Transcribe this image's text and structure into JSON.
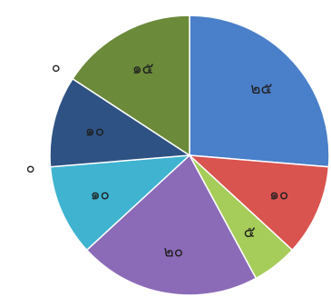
{
  "chart_data": {
    "type": "pie",
    "title": "",
    "slices": [
      {
        "label": "๒๕",
        "value": 25,
        "color": "#4a7fc9"
      },
      {
        "label": "๑๐",
        "value": 10,
        "color": "#d9534f"
      },
      {
        "label": "๕",
        "value": 5,
        "color": "#a6cc5a"
      },
      {
        "label": "๒๐",
        "value": 20,
        "color": "#8b6bb8"
      },
      {
        "label": "๑๐",
        "value": 10,
        "color": "#3fb3d0"
      },
      {
        "label": "๐",
        "value": 0,
        "color": "#3fb3d0"
      },
      {
        "label": "๑๐",
        "value": 10,
        "color": "#2e5283"
      },
      {
        "label": "๐",
        "value": 0,
        "color": "#2e5283"
      },
      {
        "label": "๑๕",
        "value": 15,
        "color": "#6b8a3a"
      }
    ]
  }
}
